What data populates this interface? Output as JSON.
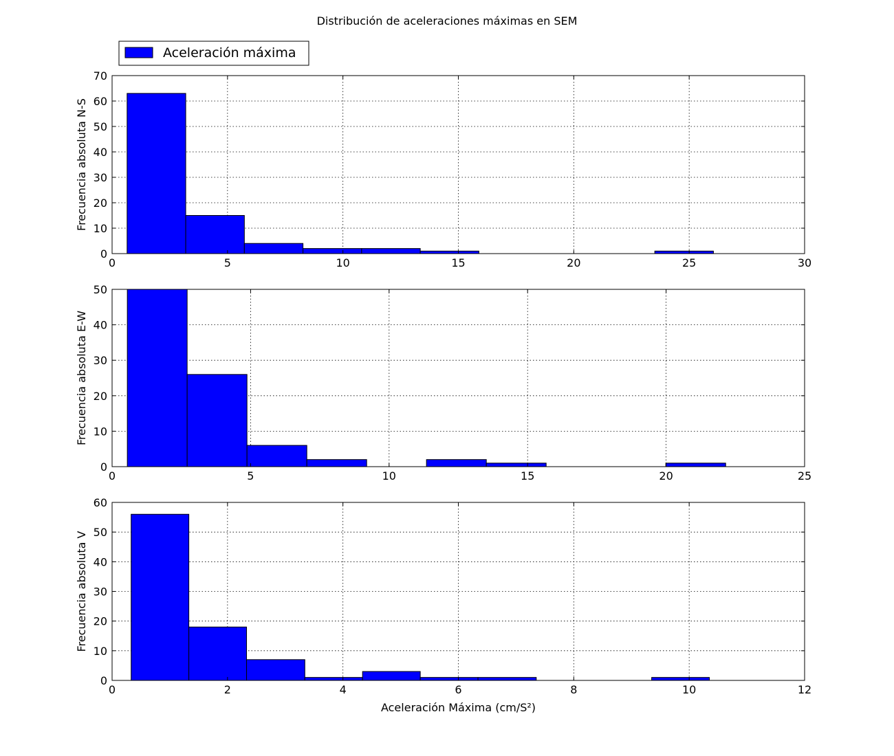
{
  "title": "Distribución de aceleraciones máximas en SEM",
  "legend": {
    "label": "Aceleración máxima",
    "color": "#0000ff",
    "placement": "upper-left-above"
  },
  "chart_data": [
    {
      "type": "bar",
      "ylabel": "Frecuencia absoluta N-S",
      "xlabel": "",
      "xlim": [
        0,
        30
      ],
      "ylim": [
        0,
        70
      ],
      "xticks": [
        0,
        5,
        10,
        15,
        20,
        25,
        30
      ],
      "yticks": [
        0,
        10,
        20,
        30,
        40,
        50,
        60,
        70
      ],
      "grid": true,
      "bins": [
        {
          "x0": 0.65,
          "x1": 3.19,
          "value": 63
        },
        {
          "x0": 3.19,
          "x1": 5.73,
          "value": 15
        },
        {
          "x0": 5.73,
          "x1": 8.27,
          "value": 4
        },
        {
          "x0": 8.27,
          "x1": 10.81,
          "value": 2
        },
        {
          "x0": 10.81,
          "x1": 13.35,
          "value": 2
        },
        {
          "x0": 13.35,
          "x1": 15.89,
          "value": 1
        },
        {
          "x0": 15.89,
          "x1": 18.43,
          "value": 0
        },
        {
          "x0": 18.43,
          "x1": 20.97,
          "value": 0
        },
        {
          "x0": 20.97,
          "x1": 23.51,
          "value": 0
        },
        {
          "x0": 23.51,
          "x1": 26.05,
          "value": 1
        }
      ]
    },
    {
      "type": "bar",
      "ylabel": "Frecuencia absoluta E-W",
      "xlabel": "",
      "xlim": [
        0,
        25
      ],
      "ylim": [
        0,
        50
      ],
      "xticks": [
        0,
        5,
        10,
        15,
        20,
        25
      ],
      "yticks": [
        0,
        10,
        20,
        30,
        40,
        50
      ],
      "grid": true,
      "bins": [
        {
          "x0": 0.55,
          "x1": 2.71,
          "value": 53
        },
        {
          "x0": 2.71,
          "x1": 4.87,
          "value": 26
        },
        {
          "x0": 4.87,
          "x1": 7.03,
          "value": 6
        },
        {
          "x0": 7.03,
          "x1": 9.19,
          "value": 2
        },
        {
          "x0": 9.19,
          "x1": 11.35,
          "value": 0
        },
        {
          "x0": 11.35,
          "x1": 13.51,
          "value": 2
        },
        {
          "x0": 13.51,
          "x1": 15.67,
          "value": 1
        },
        {
          "x0": 15.67,
          "x1": 17.83,
          "value": 0
        },
        {
          "x0": 17.83,
          "x1": 19.99,
          "value": 0
        },
        {
          "x0": 19.99,
          "x1": 22.15,
          "value": 1
        }
      ]
    },
    {
      "type": "bar",
      "ylabel": "Frecuencia absoluta V",
      "xlabel": "Aceleración Máxima (cm/S²)",
      "xlim": [
        0,
        12
      ],
      "ylim": [
        0,
        60
      ],
      "xticks": [
        0,
        2,
        4,
        6,
        8,
        10,
        12
      ],
      "yticks": [
        0,
        10,
        20,
        30,
        40,
        50,
        60
      ],
      "grid": true,
      "bins": [
        {
          "x0": 0.33,
          "x1": 1.33,
          "value": 56
        },
        {
          "x0": 1.33,
          "x1": 2.33,
          "value": 18
        },
        {
          "x0": 2.33,
          "x1": 3.34,
          "value": 7
        },
        {
          "x0": 3.34,
          "x1": 4.34,
          "value": 1
        },
        {
          "x0": 4.34,
          "x1": 5.34,
          "value": 3
        },
        {
          "x0": 5.34,
          "x1": 6.34,
          "value": 1
        },
        {
          "x0": 6.34,
          "x1": 7.35,
          "value": 1
        },
        {
          "x0": 7.35,
          "x1": 8.35,
          "value": 0
        },
        {
          "x0": 8.35,
          "x1": 9.35,
          "value": 0
        },
        {
          "x0": 9.35,
          "x1": 10.35,
          "value": 1
        }
      ]
    }
  ]
}
